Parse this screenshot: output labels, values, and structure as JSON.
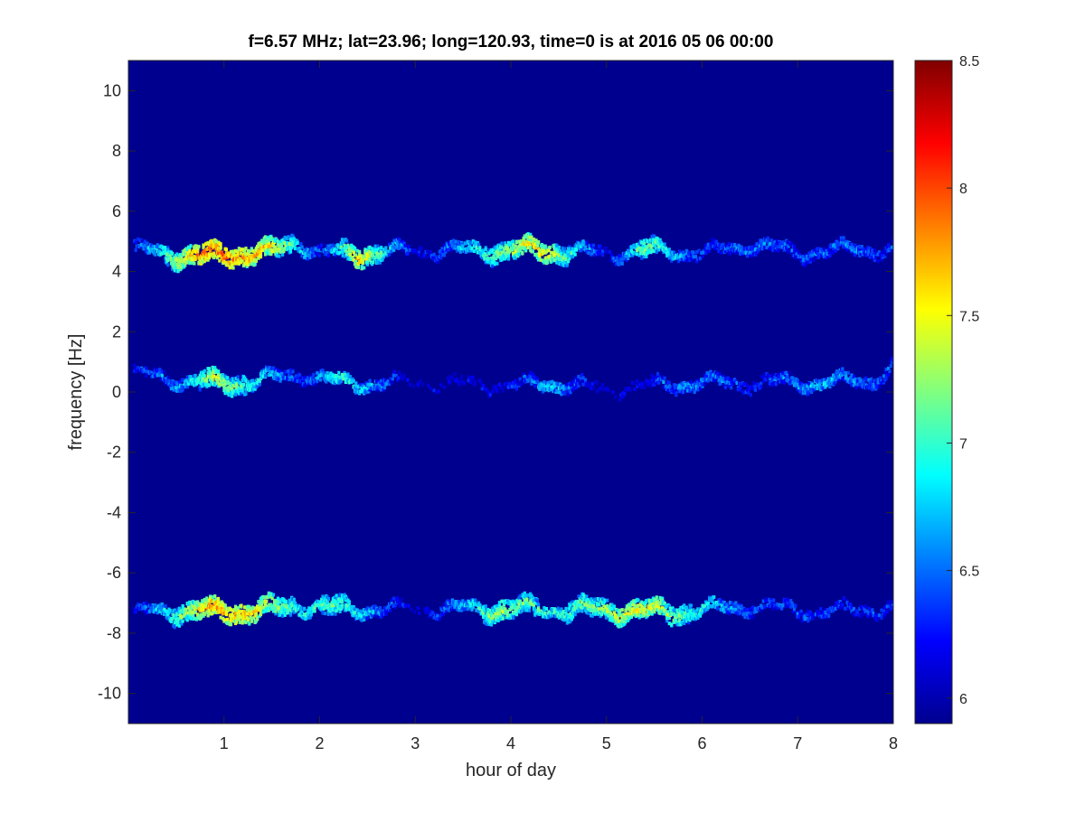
{
  "chart_data": {
    "type": "heatmap",
    "title": "f=6.57 MHz;  lat=23.96; long=120.93, time=0 is at 2016 05 06 00:00",
    "xlabel": "hour of day",
    "ylabel": "frequency [Hz]",
    "xlim": [
      0,
      8
    ],
    "ylim": [
      -11,
      11
    ],
    "x_ticks": [
      1,
      2,
      3,
      4,
      5,
      6,
      7,
      8
    ],
    "y_ticks": [
      -10,
      -8,
      -6,
      -4,
      -2,
      0,
      2,
      4,
      6,
      8,
      10
    ],
    "colorbar": {
      "range": [
        5.9,
        8.5
      ],
      "ticks": [
        6,
        6.5,
        7,
        7.5,
        8,
        8.5
      ],
      "colormap": "jet",
      "background_color": "#00008f"
    },
    "traces": [
      {
        "name_hint": "upper Doppler trace",
        "center_freq_hz": 4.6,
        "x_range": [
          0.05,
          8
        ],
        "points": [
          {
            "hour": 0.1,
            "freq": 4.7,
            "level": 6.7
          },
          {
            "hour": 0.5,
            "freq": 4.55,
            "level": 7.6
          },
          {
            "hour": 0.8,
            "freq": 4.5,
            "level": 8.2
          },
          {
            "hour": 1.2,
            "freq": 4.6,
            "level": 8.0
          },
          {
            "hour": 1.5,
            "freq": 4.65,
            "level": 7.8
          },
          {
            "hour": 1.75,
            "freq": 5.0,
            "level": 7.2
          },
          {
            "hour": 2.0,
            "freq": 4.6,
            "level": 6.6
          },
          {
            "hour": 2.4,
            "freq": 4.6,
            "level": 7.9
          },
          {
            "hour": 3.0,
            "freq": 4.7,
            "level": 6.4
          },
          {
            "hour": 3.8,
            "freq": 4.7,
            "level": 7.4
          },
          {
            "hour": 4.3,
            "freq": 4.7,
            "level": 7.9
          },
          {
            "hour": 5.0,
            "freq": 4.6,
            "level": 6.5
          },
          {
            "hour": 5.4,
            "freq": 4.7,
            "level": 7.5
          },
          {
            "hour": 6.0,
            "freq": 4.6,
            "level": 6.6
          },
          {
            "hour": 6.5,
            "freq": 4.9,
            "level": 6.8
          },
          {
            "hour": 7.0,
            "freq": 4.6,
            "level": 6.7
          },
          {
            "hour": 7.6,
            "freq": 4.75,
            "level": 6.8
          },
          {
            "hour": 8.0,
            "freq": 4.7,
            "level": 6.6
          }
        ]
      },
      {
        "name_hint": "middle Doppler trace",
        "center_freq_hz": 0.3,
        "x_range": [
          0.05,
          8
        ],
        "points": [
          {
            "hour": 0.1,
            "freq": 0.6,
            "level": 6.6
          },
          {
            "hour": 0.6,
            "freq": 0.35,
            "level": 7.0
          },
          {
            "hour": 0.9,
            "freq": 0.3,
            "level": 7.7
          },
          {
            "hour": 1.3,
            "freq": 0.35,
            "level": 7.2
          },
          {
            "hour": 1.8,
            "freq": 0.6,
            "level": 6.6
          },
          {
            "hour": 2.2,
            "freq": 0.3,
            "level": 7.3
          },
          {
            "hour": 3.0,
            "freq": 0.3,
            "level": 6.3
          },
          {
            "hour": 4.0,
            "freq": 0.2,
            "level": 6.5
          },
          {
            "hour": 4.4,
            "freq": 0.3,
            "level": 7.1
          },
          {
            "hour": 5.0,
            "freq": 0.1,
            "level": 6.3
          },
          {
            "hour": 5.9,
            "freq": 0.3,
            "level": 6.9
          },
          {
            "hour": 6.5,
            "freq": 0.3,
            "level": 6.6
          },
          {
            "hour": 7.2,
            "freq": 0.3,
            "level": 7.0
          },
          {
            "hour": 7.8,
            "freq": 0.4,
            "level": 6.8
          },
          {
            "hour": 8.0,
            "freq": 0.9,
            "level": 6.6
          }
        ]
      },
      {
        "name_hint": "lower Doppler trace",
        "center_freq_hz": -7.25,
        "x_range": [
          0.05,
          8
        ],
        "points": [
          {
            "hour": 0.1,
            "freq": -7.3,
            "level": 6.6
          },
          {
            "hour": 0.5,
            "freq": -7.25,
            "level": 7.4
          },
          {
            "hour": 0.85,
            "freq": -7.3,
            "level": 8.0
          },
          {
            "hour": 1.3,
            "freq": -7.25,
            "level": 7.9
          },
          {
            "hour": 1.8,
            "freq": -7.1,
            "level": 7.2
          },
          {
            "hour": 2.2,
            "freq": -7.2,
            "level": 7.4
          },
          {
            "hour": 3.0,
            "freq": -7.2,
            "level": 6.3
          },
          {
            "hour": 3.9,
            "freq": -7.2,
            "level": 7.6
          },
          {
            "hour": 4.4,
            "freq": -7.2,
            "level": 7.2
          },
          {
            "hour": 5.3,
            "freq": -7.25,
            "level": 7.8
          },
          {
            "hour": 5.7,
            "freq": -7.3,
            "level": 7.5
          },
          {
            "hour": 6.5,
            "freq": -7.1,
            "level": 6.7
          },
          {
            "hour": 7.3,
            "freq": -7.3,
            "level": 6.7
          },
          {
            "hour": 7.9,
            "freq": -7.15,
            "level": 6.6
          }
        ]
      }
    ]
  }
}
